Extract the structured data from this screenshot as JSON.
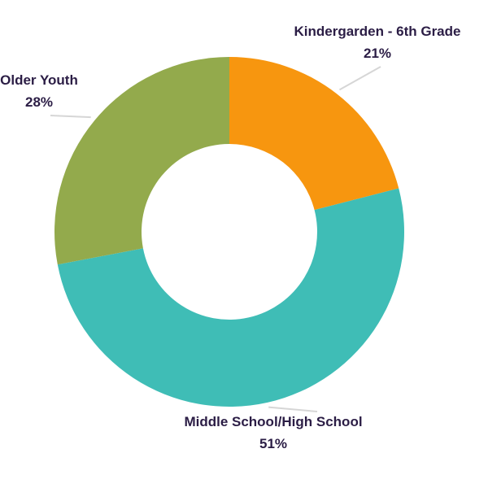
{
  "chart_data": {
    "type": "pie",
    "variant": "donut",
    "start": "12 o'clock, clockwise",
    "slices": [
      {
        "label": "Kindergarden - 6th Grade",
        "value": 21,
        "value_label": "21%",
        "color": "#f7960f"
      },
      {
        "label": "Middle School/High School",
        "value": 51,
        "value_label": "51%",
        "color": "#3fbdb6"
      },
      {
        "label": "Older Youth",
        "value": 28,
        "value_label": "28%",
        "color": "#93aa4c"
      }
    ]
  }
}
